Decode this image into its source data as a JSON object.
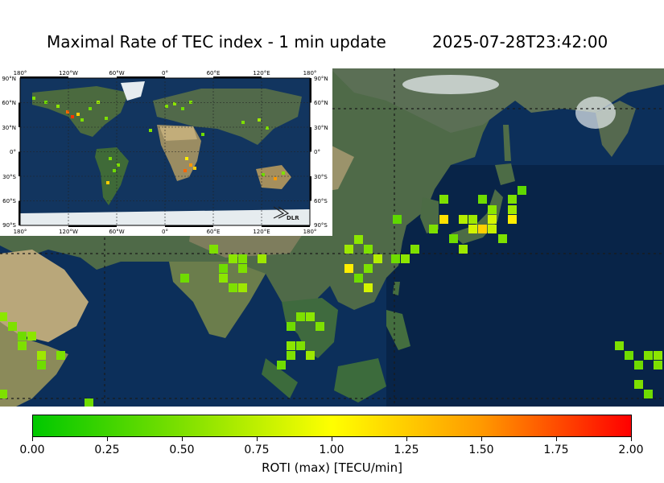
{
  "title": "Maximal Rate of TEC index - 1 min update",
  "timestamp": "2025-07-28T23:42:00",
  "inset": {
    "lon_labels": [
      "180°",
      "120°W",
      "60°W",
      "0°",
      "60°E",
      "120°E",
      "180°"
    ],
    "lat_labels": [
      "90°N",
      "60°N",
      "30°N",
      "0°",
      "30°S",
      "60°S",
      "90°S"
    ],
    "logo_text": "DLR"
  },
  "colorbar": {
    "label": "ROTI (max) [TECU/min]",
    "ticks": [
      "0.00",
      "0.25",
      "0.50",
      "0.75",
      "1.00",
      "1.25",
      "1.50",
      "1.75",
      "2.00"
    ],
    "range": [
      0,
      2
    ],
    "colors": [
      "#00c800",
      "#7ee000",
      "#ffff00",
      "#ff9900",
      "#ff0000"
    ]
  },
  "colors": {
    "ocean": "#0b2f5c",
    "land": "#4d6b4a",
    "desert": "#b8a77c",
    "ice": "#e8eef2"
  }
}
